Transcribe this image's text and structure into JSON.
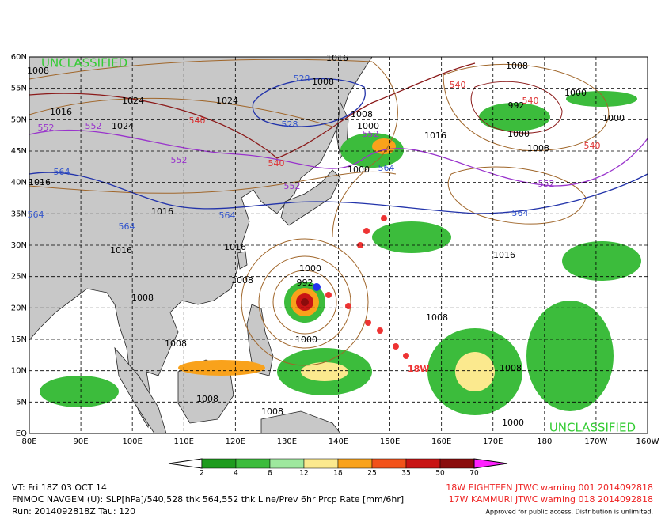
{
  "map": {
    "unclassified_top": "UNCLASSIFIED",
    "unclassified_bottom": "UNCLASSIFIED",
    "storm_label": "18W",
    "lat_labels": [
      "60N",
      "55N",
      "50N",
      "45N",
      "40N",
      "35N",
      "30N",
      "25N",
      "20N",
      "15N",
      "10N",
      "5N",
      "EQ"
    ],
    "lon_labels": [
      "80E",
      "90E",
      "100E",
      "110E",
      "120E",
      "130E",
      "140E",
      "150E",
      "160E",
      "170E",
      "180",
      "170W",
      "160W"
    ],
    "contour_labels": [
      {
        "text": "1008",
        "color": "#000000"
      },
      {
        "text": "1016",
        "color": "#000000"
      },
      {
        "text": "1024",
        "color": "#000000"
      },
      {
        "text": "1024",
        "color": "#000000"
      },
      {
        "text": "1024",
        "color": "#000000"
      },
      {
        "text": "1016",
        "color": "#000000"
      },
      {
        "text": "1008",
        "color": "#000000"
      },
      {
        "text": "1008",
        "color": "#000000"
      },
      {
        "text": "1000",
        "color": "#000000"
      },
      {
        "text": "1016",
        "color": "#000000"
      },
      {
        "text": "1008",
        "color": "#000000"
      },
      {
        "text": "1000",
        "color": "#000000"
      },
      {
        "text": "992",
        "color": "#000000"
      },
      {
        "text": "1000",
        "color": "#000000"
      },
      {
        "text": "1000",
        "color": "#000000"
      },
      {
        "text": "1008",
        "color": "#000000"
      },
      {
        "text": "1016",
        "color": "#000000"
      },
      {
        "text": "1016",
        "color": "#000000"
      },
      {
        "text": "1016",
        "color": "#000000"
      },
      {
        "text": "1016",
        "color": "#000000"
      },
      {
        "text": "1008",
        "color": "#000000"
      },
      {
        "text": "1008",
        "color": "#000000"
      },
      {
        "text": "1008",
        "color": "#000000"
      },
      {
        "text": "1000",
        "color": "#000000"
      },
      {
        "text": "1000",
        "color": "#000000"
      },
      {
        "text": "1008",
        "color": "#000000"
      },
      {
        "text": "1016",
        "color": "#000000"
      },
      {
        "text": "1008",
        "color": "#000000"
      },
      {
        "text": "1008",
        "color": "#000000"
      },
      {
        "text": "1008",
        "color": "#000000"
      },
      {
        "text": "1000",
        "color": "#000000"
      },
      {
        "text": "1000",
        "color": "#000000"
      },
      {
        "text": "992",
        "color": "#000000"
      },
      {
        "text": "552",
        "color": "#9933cc"
      },
      {
        "text": "552",
        "color": "#9933cc"
      },
      {
        "text": "552",
        "color": "#9933cc"
      },
      {
        "text": "552",
        "color": "#9933cc"
      },
      {
        "text": "552",
        "color": "#9933cc"
      },
      {
        "text": "552",
        "color": "#9933cc"
      },
      {
        "text": "564",
        "color": "#3355cc"
      },
      {
        "text": "564",
        "color": "#3355cc"
      },
      {
        "text": "564",
        "color": "#3355cc"
      },
      {
        "text": "564",
        "color": "#3355cc"
      },
      {
        "text": "564",
        "color": "#3355cc"
      },
      {
        "text": "528",
        "color": "#3355cc"
      },
      {
        "text": "528",
        "color": "#3355cc"
      },
      {
        "text": "540",
        "color": "#dd3333"
      },
      {
        "text": "540",
        "color": "#dd3333"
      },
      {
        "text": "540",
        "color": "#dd3333"
      },
      {
        "text": "540",
        "color": "#dd3333"
      },
      {
        "text": "540",
        "color": "#dd3333"
      },
      {
        "text": "564",
        "color": "#3355cc"
      }
    ]
  },
  "colorbar": {
    "labels": [
      2,
      4,
      8,
      12,
      18,
      25,
      35,
      50,
      70
    ],
    "colors": [
      "#1e9b1e",
      "#3cbc3c",
      "#9ee89e",
      "#fbe98e",
      "#f9a21b",
      "#f2521a",
      "#c81414",
      "#8a0c0c"
    ],
    "low_color": "#ffffff",
    "high_color": "#ff22ff"
  },
  "footer": {
    "left": [
      "VT: Fri 18Z 03 OCT 14",
      "FNMOC NAVGEM (U): SLP[hPa]/540,528 thk 564,552 thk Line/Prev 6hr Prcp Rate [mm/6hr]",
      "Run: 2014092818Z Tau: 120"
    ],
    "right": [
      "18W EIGHTEEN JTWC warning 001 2014092818",
      "17W KAMMURI JTWC warning 018 2014092818"
    ],
    "notice": "Approved for public access. Distribution is unlimited."
  }
}
